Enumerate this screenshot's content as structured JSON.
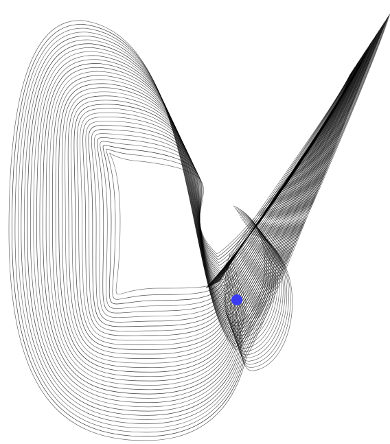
{
  "figure": {
    "background_color": "#ffffff",
    "trajectory_color": "#000000",
    "marker_color": "#3b3bf5"
  }
}
